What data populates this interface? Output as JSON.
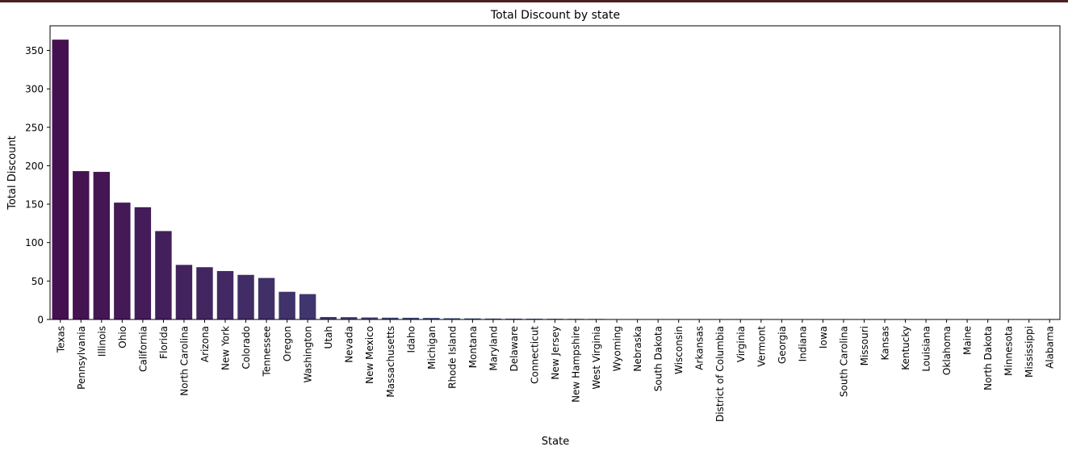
{
  "chart_data": {
    "type": "bar",
    "title": "Total Discount by state",
    "xlabel": "State",
    "ylabel": "Total Discount",
    "ylim": [
      0,
      382
    ],
    "yticks": [
      0,
      50,
      100,
      150,
      200,
      250,
      300,
      350
    ],
    "grid": false,
    "categories": [
      "Texas",
      "Pennsylvania",
      "Illinois",
      "Ohio",
      "California",
      "Florida",
      "North Carolina",
      "Arizona",
      "New York",
      "Colorado",
      "Tennessee",
      "Oregon",
      "Washington",
      "Utah",
      "Nevada",
      "New Mexico",
      "Massachusetts",
      "Idaho",
      "Michigan",
      "Rhode Island",
      "Montana",
      "Maryland",
      "Delaware",
      "Connecticut",
      "New Jersey",
      "New Hampshire",
      "West Virginia",
      "Wyoming",
      "Nebraska",
      "South Dakota",
      "Wisconsin",
      "Arkansas",
      "District of Columbia",
      "Virginia",
      "Vermont",
      "Georgia",
      "Indiana",
      "Iowa",
      "South Carolina",
      "Missouri",
      "Kansas",
      "Kentucky",
      "Louisiana",
      "Oklahoma",
      "Maine",
      "North Dakota",
      "Minnesota",
      "Mississippi",
      "Alabama"
    ],
    "values": [
      364,
      193,
      192,
      152,
      146,
      115,
      71,
      68,
      63,
      58,
      54,
      36,
      33,
      3.2,
      3.0,
      2.6,
      2.3,
      2.2,
      2.0,
      1.6,
      1.4,
      1.2,
      1.1,
      1.0,
      0.9,
      0.8,
      0.7,
      0,
      0,
      0,
      0,
      0,
      0,
      0,
      0,
      0,
      0,
      0,
      0,
      0,
      0,
      0,
      0,
      0,
      0,
      0,
      0,
      0,
      0
    ],
    "palette": "viridis-like gradient (dark purple to teal)",
    "colors": {
      "start": "#45104f",
      "mid": "#3b5a8a",
      "end": "#2a8a88",
      "axis": "#000000"
    }
  }
}
